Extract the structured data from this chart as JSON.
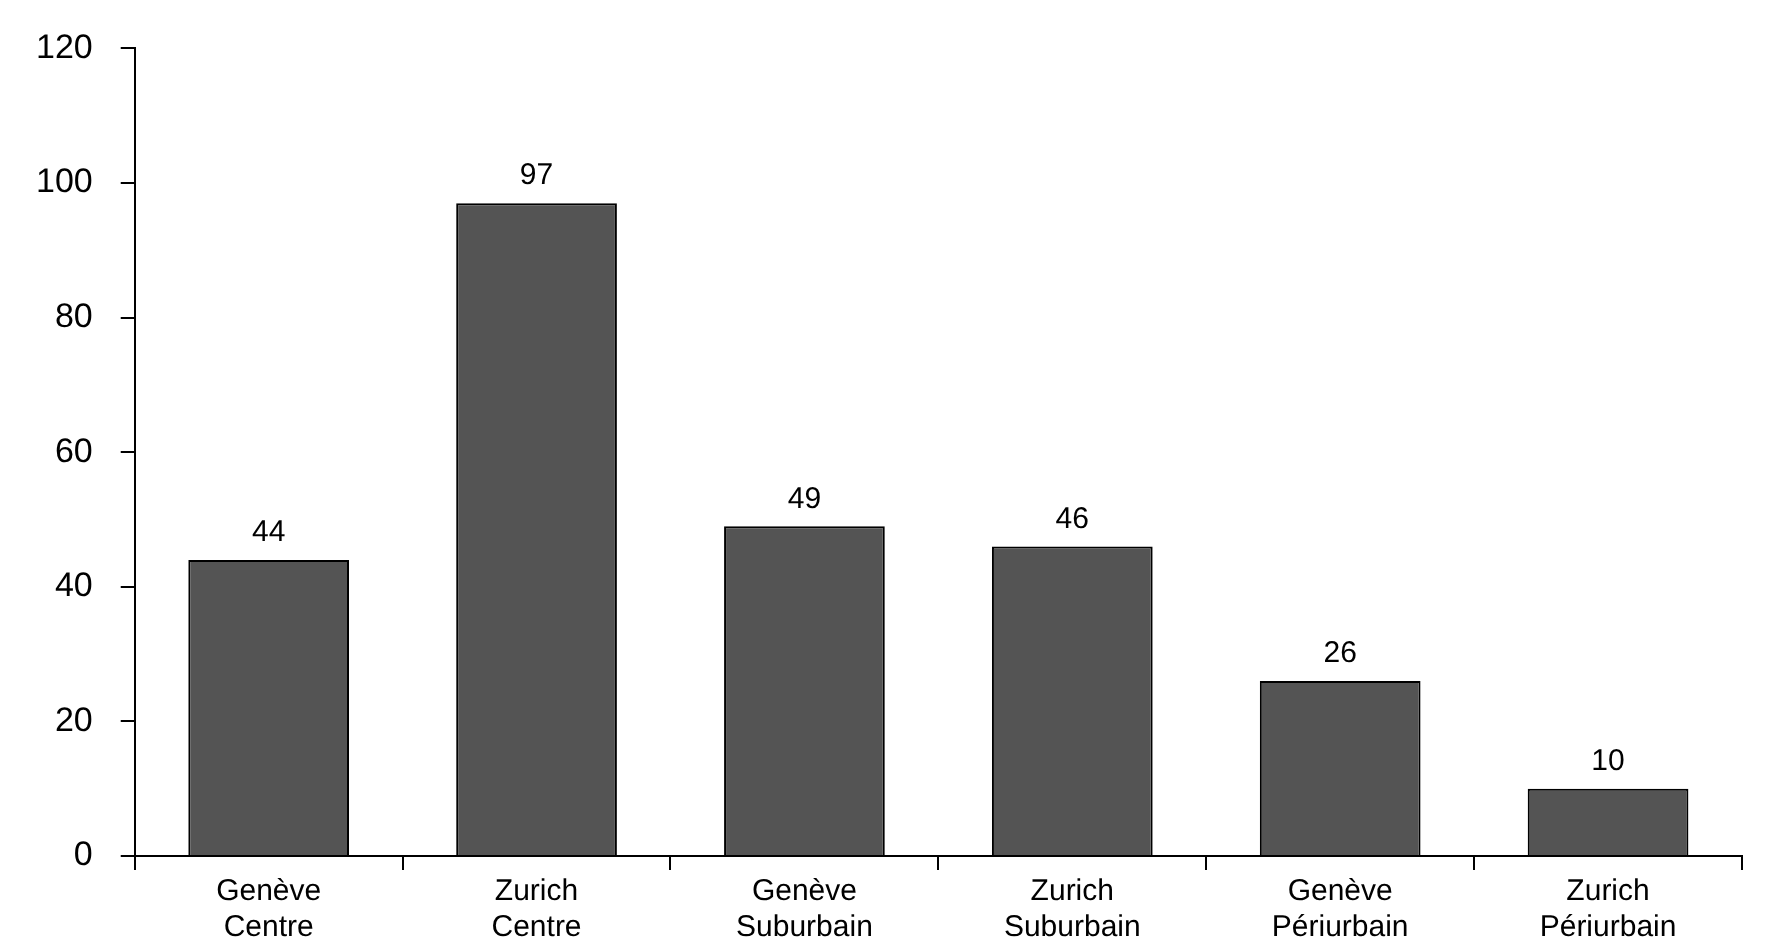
{
  "chart_data": {
    "type": "bar",
    "categories": [
      "Genève Centre",
      "Zurich Centre",
      "Genève Suburbain",
      "Zurich Suburbain",
      "Genève Périurbain",
      "Zurich Périurbain"
    ],
    "values": [
      44,
      97,
      49,
      46,
      26,
      10
    ],
    "color": "#545454",
    "ylim": [
      0,
      120
    ],
    "yticks": [
      0,
      20,
      40,
      60,
      80,
      100,
      120
    ],
    "grid": false,
    "data_labels": true,
    "legend": false
  }
}
